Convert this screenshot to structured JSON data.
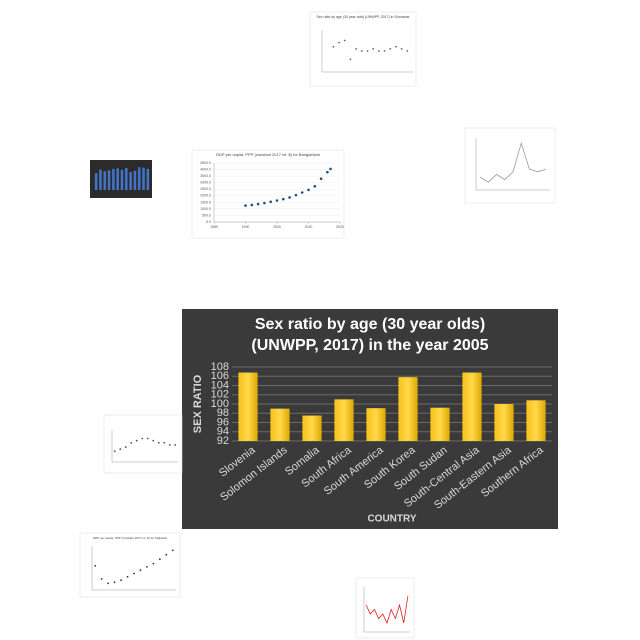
{
  "chart_data": [
    {
      "type": "bar",
      "title": [
        "Sex ratio by age (30 year olds)",
        "(UNWPP, 2017) in the year 2005"
      ],
      "y_label": "SEX RATIO",
      "x_label": "COUNTRY",
      "background": "#3a3a3a",
      "color": "#f5b800",
      "grid": true,
      "categories": [
        "Slovenia",
        "Solomon Islands",
        "Somalia",
        "South Africa",
        "South America",
        "South Korea",
        "South Sudan",
        "South-Central Asia",
        "South-Eastern Asia",
        "Southern Africa"
      ],
      "values": [
        106.8,
        99,
        97.5,
        101,
        99.1,
        105.8,
        99.2,
        106.8,
        100,
        100.8
      ],
      "ylim": [
        92,
        108
      ],
      "yticks": [
        92,
        94,
        96,
        98,
        100,
        102,
        104,
        106,
        108
      ]
    },
    {
      "type": "scatter",
      "title": "Sex ratio by age (30 year olds) (UNWPP, 2017) in Suriname",
      "background": "#ffffff",
      "color": "#666666",
      "x": [
        1950,
        1955,
        1960,
        1965,
        1970,
        1975,
        1980,
        1985,
        1990,
        1995,
        2000,
        2005,
        2010,
        2015
      ],
      "values": [
        102,
        104,
        105,
        96,
        101,
        100,
        100,
        101,
        100,
        100,
        101,
        102,
        101,
        100
      ],
      "xlim": [
        1940,
        2020
      ],
      "ylim": [
        90,
        110
      ]
    },
    {
      "type": "bar",
      "background": "#2b2b2b",
      "color": "#4472c4",
      "values": [
        70,
        85,
        78,
        82,
        88,
        90,
        84,
        92,
        75,
        80,
        95,
        93,
        88
      ],
      "ylim": [
        0,
        100
      ]
    },
    {
      "type": "scatter",
      "title": "GDP per capita, PPP (constant 2017 int. $) for Bangladesh",
      "background": "#ffffff",
      "color": "#1f4e79",
      "x": [
        1990,
        1992,
        1994,
        1996,
        1998,
        2000,
        2002,
        2004,
        2006,
        2008,
        2010,
        2012,
        2014,
        2016,
        2017
      ],
      "values": [
        1250,
        1300,
        1370,
        1450,
        1540,
        1640,
        1740,
        1870,
        2050,
        2250,
        2450,
        2720,
        3300,
        3800,
        4050
      ],
      "xlim": [
        1980,
        2020
      ],
      "xticks": [
        1980,
        1990,
        2000,
        2010,
        2020
      ],
      "ylim": [
        0,
        4500
      ],
      "yticks": [
        {
          "value": 0,
          "label": "0.0"
        },
        {
          "value": 500,
          "label": "500.0"
        },
        {
          "value": 1000,
          "label": "1000.0"
        },
        {
          "value": 1500,
          "label": "1500.0"
        },
        {
          "value": 2000,
          "label": "2000.0"
        },
        {
          "value": 2500,
          "label": "2500.0"
        },
        {
          "value": 3000,
          "label": "3000.0"
        },
        {
          "value": 3500,
          "label": "3500.0"
        },
        {
          "value": 4000,
          "label": "4000.0"
        },
        {
          "value": 4500,
          "label": "4500.0"
        }
      ]
    },
    {
      "type": "line",
      "background": "#ffffff",
      "color": "#999999",
      "values": [
        5,
        3,
        6,
        4,
        7,
        18,
        8,
        7,
        8
      ],
      "ylim": [
        0,
        20
      ]
    },
    {
      "type": "scatter",
      "background": "#ffffff",
      "color": "#555555",
      "values": [
        100,
        101,
        102,
        104,
        105,
        106,
        106,
        105,
        104,
        104,
        103,
        103
      ],
      "ylim": [
        95,
        110
      ]
    },
    {
      "type": "scatter",
      "title": "GDP per capita, PPP (constant 2017 int. $) for Tajikistan",
      "background": "#ffffff",
      "color": "#1f3864",
      "values": [
        2100,
        1500,
        1300,
        1350,
        1450,
        1600,
        1750,
        1900,
        2050,
        2200,
        2400,
        2600,
        2800
      ],
      "ylim": [
        1000,
        3000
      ]
    },
    {
      "type": "line",
      "background": "#ffffff",
      "color": "#e02020",
      "values": [
        6,
        4,
        5,
        3,
        4,
        2,
        5,
        3,
        6,
        2,
        8
      ],
      "ylim": [
        0,
        10
      ]
    }
  ]
}
